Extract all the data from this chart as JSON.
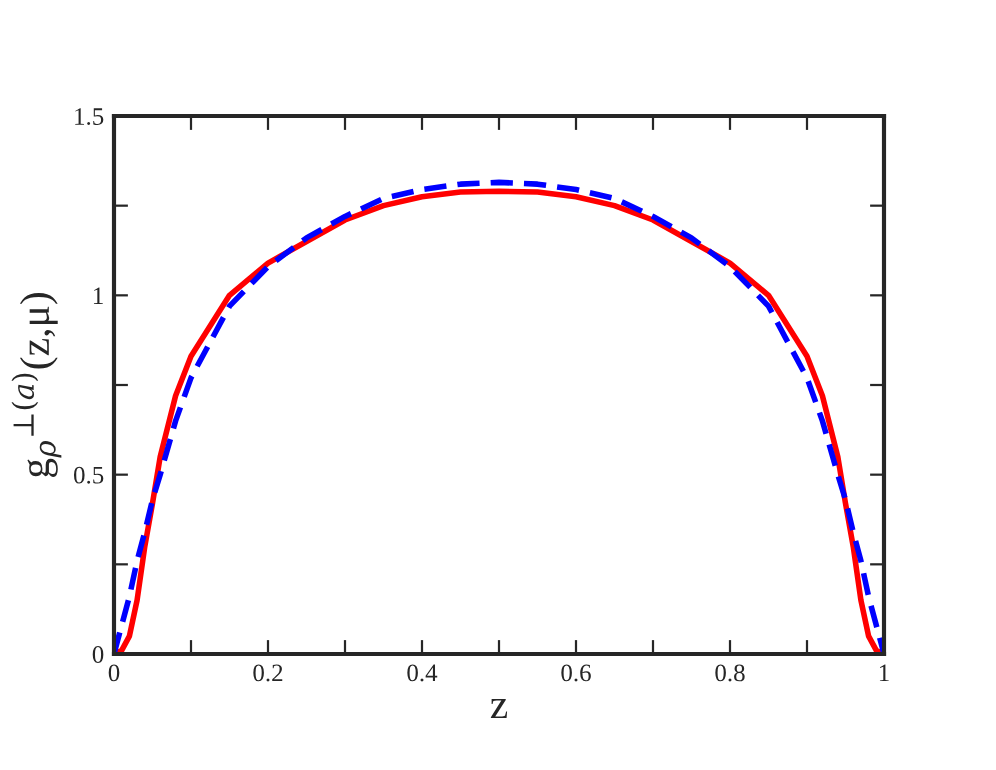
{
  "chart_data": {
    "type": "line",
    "xlabel": "z",
    "ylabel": "g$_{ρ}$$^{⊥(a)}$(z,μ)",
    "x": [
      0,
      0.01,
      0.02,
      0.03,
      0.04,
      0.05,
      0.06,
      0.08,
      0.1,
      0.15,
      0.2,
      0.25,
      0.3,
      0.35,
      0.4,
      0.45,
      0.5,
      0.55,
      0.6,
      0.65,
      0.7,
      0.75,
      0.8,
      0.85,
      0.9,
      0.92,
      0.94,
      0.95,
      0.96,
      0.97,
      0.98,
      0.99,
      1
    ],
    "series": [
      {
        "color": "#ff0000",
        "line_style": "solid",
        "values": [
          0,
          0.01,
          0.05,
          0.15,
          0.3,
          0.42,
          0.55,
          0.72,
          0.83,
          1.0,
          1.09,
          1.15,
          1.21,
          1.25,
          1.275,
          1.288,
          1.29,
          1.288,
          1.275,
          1.25,
          1.21,
          1.15,
          1.09,
          1.0,
          0.83,
          0.72,
          0.55,
          0.42,
          0.3,
          0.15,
          0.05,
          0.01,
          0
        ]
      },
      {
        "color": "#0000ff",
        "line_style": "dashed",
        "values": [
          0,
          0.08,
          0.16,
          0.26,
          0.34,
          0.43,
          0.5,
          0.65,
          0.77,
          0.97,
          1.08,
          1.16,
          1.22,
          1.27,
          1.295,
          1.31,
          1.315,
          1.31,
          1.295,
          1.27,
          1.22,
          1.16,
          1.08,
          0.97,
          0.77,
          0.65,
          0.5,
          0.43,
          0.34,
          0.26,
          0.16,
          0.08,
          0
        ]
      }
    ],
    "xlim": [
      0,
      1
    ],
    "ylim": [
      0,
      1.5
    ],
    "xticks": [
      0,
      {
        "value": 0.1,
        "label": null
      },
      0.2,
      {
        "value": 0.3,
        "label": null
      },
      0.4,
      {
        "value": 0.5,
        "label": null
      },
      0.6,
      {
        "value": 0.7,
        "label": null
      },
      0.8,
      {
        "value": 0.9,
        "label": null
      },
      1
    ],
    "yticks": [
      0,
      {
        "value": 0.25,
        "label": null
      },
      0.5,
      {
        "value": 0.75,
        "label": null
      },
      1,
      {
        "value": 1.25,
        "label": null
      },
      1.5
    ],
    "grid": false,
    "legend": false,
    "marker": "none"
  }
}
